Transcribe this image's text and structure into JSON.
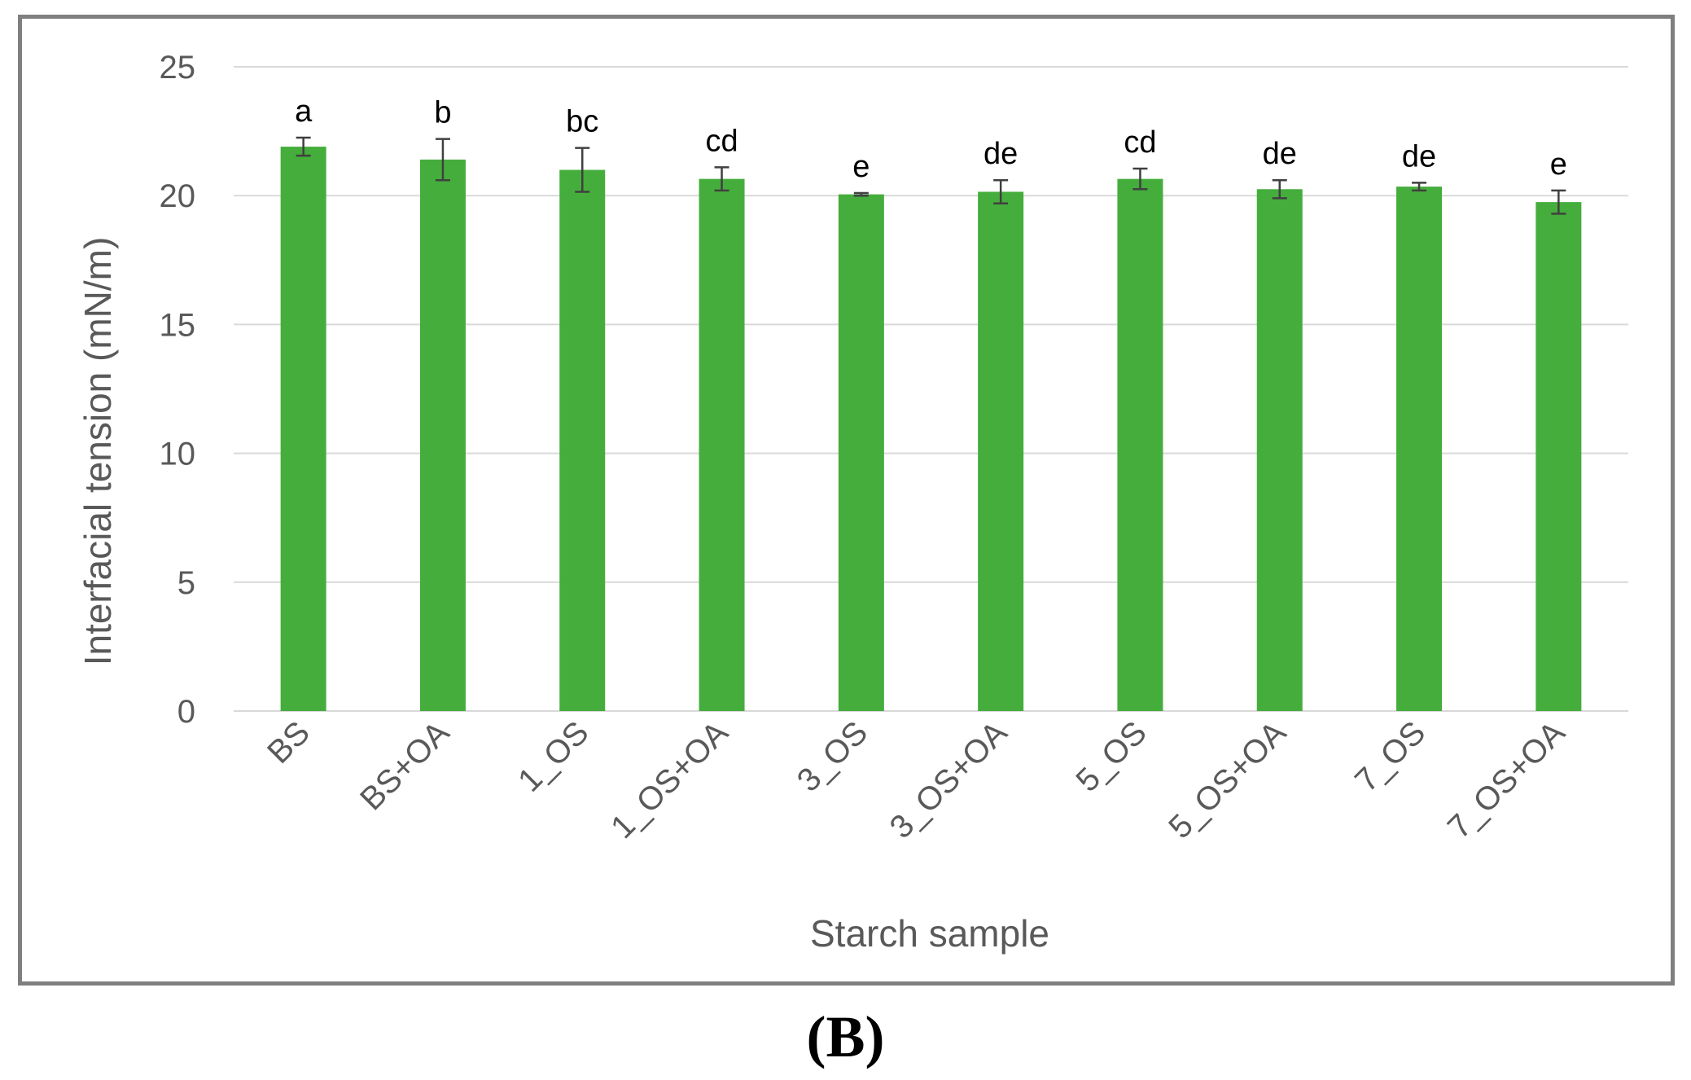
{
  "panel_label": "(B)",
  "chart_data": {
    "type": "bar",
    "title": "",
    "xlabel": "Starch sample",
    "ylabel": "Interfacial tension (mN/m)",
    "ylim": [
      0,
      25
    ],
    "yticks": [
      0,
      5,
      10,
      15,
      20,
      25
    ],
    "grid": true,
    "legend": "none",
    "categories": [
      "BS",
      "BS+OA",
      "1_OS",
      "1_OS+OA",
      "3_OS",
      "3_OS+OA",
      "5_OS",
      "5_OS+OA",
      "7_OS",
      "7_OS+OA"
    ],
    "values": [
      21.9,
      21.4,
      21.0,
      20.65,
      20.05,
      20.15,
      20.65,
      20.25,
      20.35,
      19.75
    ],
    "errors": [
      0.35,
      0.8,
      0.85,
      0.45,
      0.05,
      0.45,
      0.4,
      0.35,
      0.15,
      0.45
    ],
    "significance_letters": [
      "a",
      "b",
      "bc",
      "cd",
      "e",
      "de",
      "cd",
      "de",
      "de",
      "e"
    ],
    "colors": {
      "bar": "#45ad3c",
      "grid": "#d9d9d9",
      "error_bar": "#404040",
      "text": "#595959",
      "frame": "#7f7f7f"
    }
  }
}
